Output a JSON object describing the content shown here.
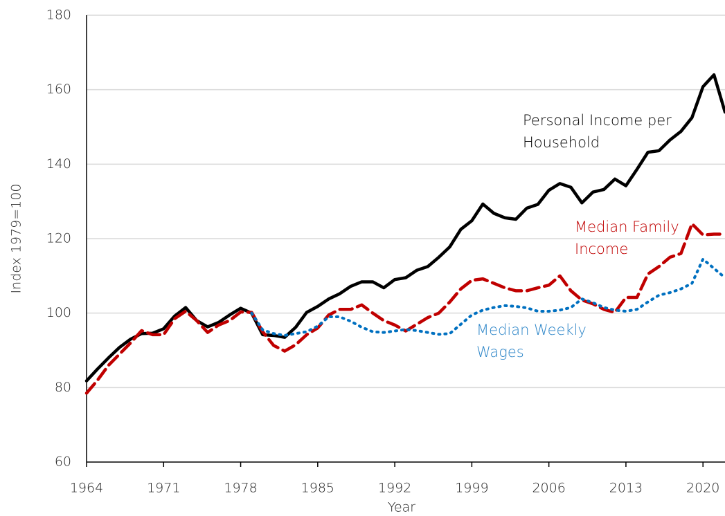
{
  "chart_data": {
    "type": "line",
    "x_label": "Year",
    "y_label": "Index 1979=100",
    "x": [
      1964,
      1965,
      1966,
      1967,
      1968,
      1969,
      1970,
      1971,
      1972,
      1973,
      1974,
      1975,
      1976,
      1977,
      1978,
      1979,
      1980,
      1981,
      1982,
      1983,
      1984,
      1985,
      1986,
      1987,
      1988,
      1989,
      1990,
      1991,
      1992,
      1993,
      1994,
      1995,
      1996,
      1997,
      1998,
      1999,
      2000,
      2001,
      2002,
      2003,
      2004,
      2005,
      2006,
      2007,
      2008,
      2009,
      2010,
      2011,
      2012,
      2013,
      2014,
      2015,
      2016,
      2017,
      2018,
      2019,
      2020,
      2021,
      2022
    ],
    "series": [
      {
        "name": "Personal Income per Household",
        "color": "#000000",
        "dash": "solid",
        "values": [
          81.8,
          85,
          88,
          90.8,
          93,
          94.5,
          94.6,
          95.8,
          99.2,
          101.5,
          98,
          96.3,
          97.5,
          99.5,
          101.3,
          100,
          94.2,
          94,
          93.5,
          96.2,
          100.2,
          101.8,
          103.8,
          105.2,
          107.2,
          108.4,
          108.4,
          106.8,
          109,
          109.5,
          111.5,
          112.5,
          115,
          117.8,
          122.5,
          124.8,
          129.3,
          126.8,
          125.6,
          125.2,
          128.2,
          129.2,
          133,
          134.8,
          133.8,
          129.6,
          132.5,
          133.2,
          136,
          134.2,
          138.6,
          143.2,
          143.6,
          146.5,
          148.8,
          152.5,
          160.8,
          164,
          154
        ]
      },
      {
        "name": "Median Family Income",
        "color": "#c00000",
        "dash": "dashed",
        "values": [
          78.5,
          82,
          86,
          89,
          92,
          95.3,
          94.2,
          94.2,
          98.5,
          100.5,
          98,
          94.8,
          96.8,
          98,
          100.3,
          100.2,
          95,
          91.3,
          89.8,
          91.5,
          94.2,
          96,
          99.5,
          101,
          101,
          102.2,
          100,
          98,
          96.8,
          95.2,
          97,
          98.8,
          100,
          103,
          106.5,
          108.8,
          109.2,
          108,
          106.8,
          106,
          106,
          106.8,
          107.5,
          110,
          106,
          103.5,
          102.5,
          101,
          100.2,
          104.2,
          104.2,
          110.5,
          112.5,
          115,
          116,
          124,
          121,
          121.2,
          121.2
        ]
      },
      {
        "name": "Median Weekly Wages",
        "color": "#0070c0",
        "dash": "dotted",
        "values": [
          null,
          null,
          null,
          null,
          null,
          null,
          null,
          null,
          null,
          null,
          null,
          null,
          null,
          null,
          null,
          100,
          95.5,
          94.5,
          94,
          94.5,
          95,
          96.5,
          99,
          99,
          97.8,
          96.2,
          95,
          94.8,
          95.2,
          95.6,
          95.3,
          94.8,
          94.3,
          94.5,
          97,
          99.5,
          100.8,
          101.5,
          102,
          101.8,
          101.4,
          100.5,
          100.5,
          100.8,
          101.5,
          103.8,
          102.8,
          101.5,
          100.8,
          100.5,
          101,
          103,
          104.8,
          105.5,
          106.5,
          108,
          114.5,
          112,
          109.5
        ]
      }
    ],
    "annotations": [
      {
        "lines": [
          "Personal Income per",
          "Household"
        ],
        "color": "#000000"
      },
      {
        "lines": [
          "Median Family",
          "Income"
        ],
        "color": "#c00000"
      },
      {
        "lines": [
          "Median Weekly",
          "Wages"
        ],
        "color": "#2e86c8"
      }
    ],
    "xlim": [
      1964,
      2022
    ],
    "xticks": [
      1964,
      1971,
      1978,
      1985,
      1992,
      1999,
      2006,
      2013,
      2020
    ],
    "ylim": [
      60,
      180
    ],
    "yticks": [
      60,
      80,
      100,
      120,
      140,
      160,
      180
    ],
    "grid": true
  }
}
